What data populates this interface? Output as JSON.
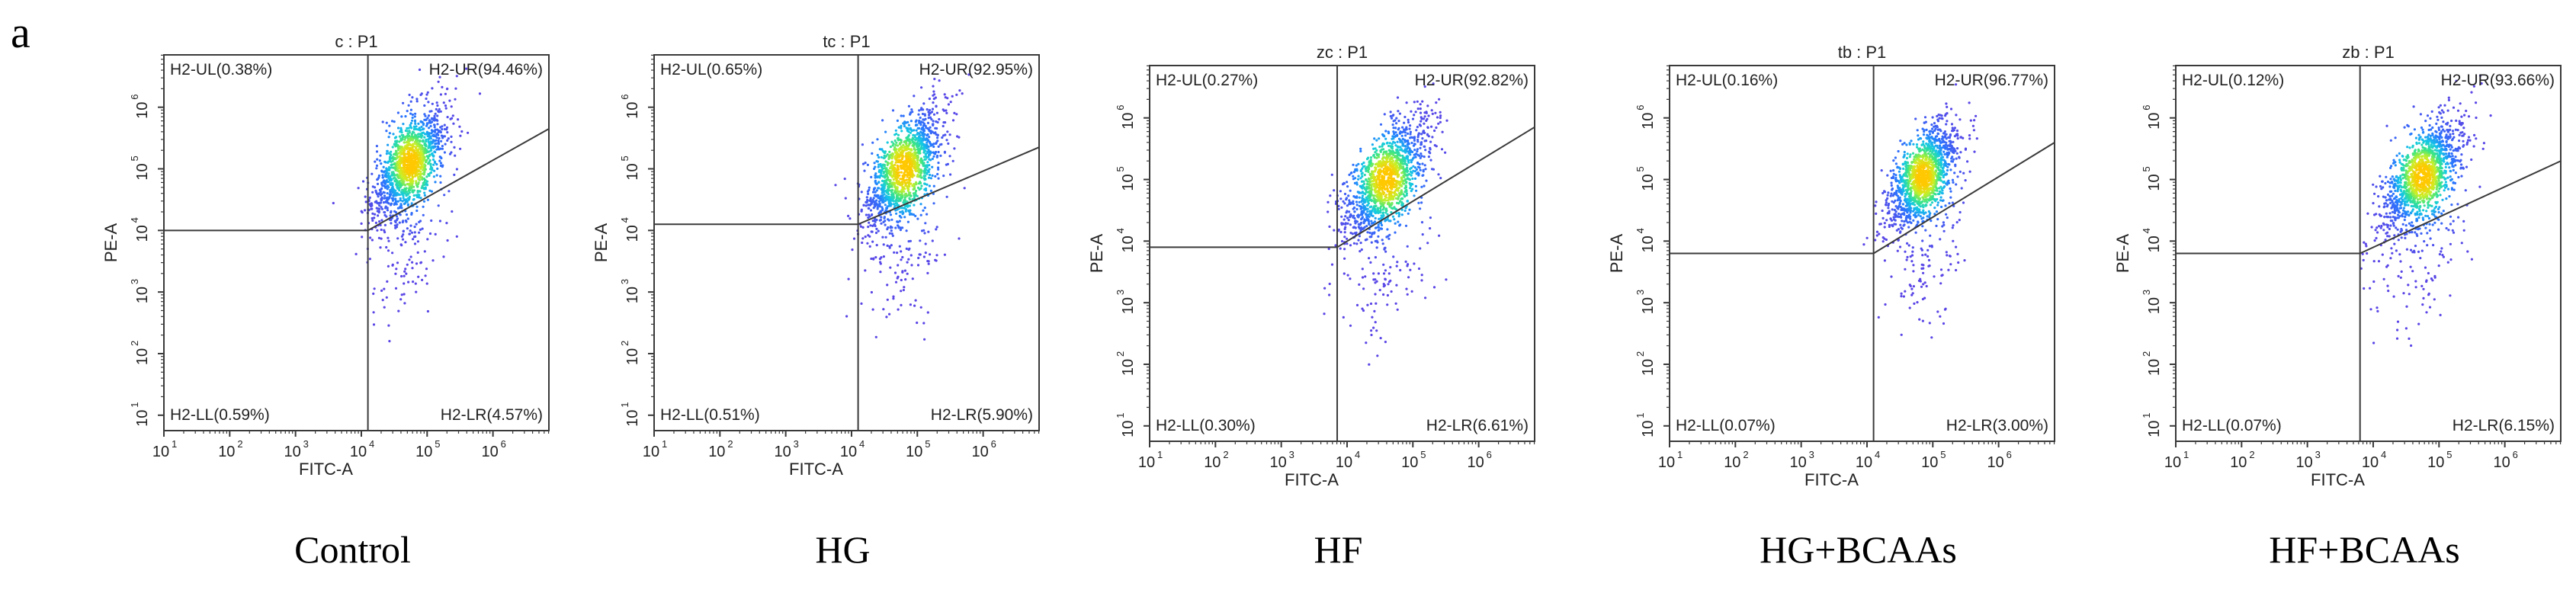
{
  "panel_label": "a",
  "colors": {
    "frame": "#3a3a3a",
    "text": "#222222",
    "caption": "#000000"
  },
  "chart_data": [
    {
      "type": "scatter",
      "title": "c : P1",
      "caption": "Control",
      "xlabel": "FITC-A",
      "ylabel": "PE-A",
      "scale": "log",
      "xlim_exp": [
        1,
        6.85
      ],
      "ylim_exp": [
        0.75,
        6.85
      ],
      "ticks": [
        {
          "base": "10",
          "exp": "1",
          "v": 1
        },
        {
          "base": "10",
          "exp": "2",
          "v": 2
        },
        {
          "base": "10",
          "exp": "3",
          "v": 3
        },
        {
          "base": "10",
          "exp": "4",
          "v": 4
        },
        {
          "base": "10",
          "exp": "5",
          "v": 5
        },
        {
          "base": "10",
          "exp": "6",
          "v": 6
        }
      ],
      "quadrants": {
        "ul": "H2-UL(0.38%)",
        "ur": "H2-UR(94.46%)",
        "ll": "H2-LL(0.59%)",
        "lr": "H2-LR(4.57%)"
      },
      "gate": {
        "vertical_x": 4.1,
        "horizontal_y": 4.0,
        "diagonal_end": [
          6.85,
          5.65
        ]
      },
      "cluster": {
        "cx": 4.75,
        "cy": 5.1,
        "sx": 0.28,
        "sy": 0.48,
        "tilt": 0.9
      }
    },
    {
      "type": "scatter",
      "title": "tc : P1",
      "caption": "HG",
      "xlabel": "FITC-A",
      "ylabel": "PE-A",
      "scale": "log",
      "xlim_exp": [
        1,
        6.85
      ],
      "ylim_exp": [
        0.75,
        6.85
      ],
      "ticks": [
        {
          "base": "10",
          "exp": "1",
          "v": 1
        },
        {
          "base": "10",
          "exp": "2",
          "v": 2
        },
        {
          "base": "10",
          "exp": "3",
          "v": 3
        },
        {
          "base": "10",
          "exp": "4",
          "v": 4
        },
        {
          "base": "10",
          "exp": "5",
          "v": 5
        },
        {
          "base": "10",
          "exp": "6",
          "v": 6
        }
      ],
      "quadrants": {
        "ul": "H2-UL(0.65%)",
        "ur": "H2-UR(92.95%)",
        "ll": "H2-LL(0.51%)",
        "lr": "H2-LR(5.90%)"
      },
      "gate": {
        "vertical_x": 4.1,
        "horizontal_y": 4.1,
        "diagonal_end": [
          6.85,
          5.35
        ]
      },
      "cluster": {
        "cx": 4.8,
        "cy": 5.0,
        "sx": 0.3,
        "sy": 0.52,
        "tilt": 0.9
      }
    },
    {
      "type": "scatter",
      "title": "zc : P1",
      "caption": "HF",
      "xlabel": "FITC-A",
      "ylabel": "PE-A",
      "scale": "log",
      "xlim_exp": [
        1,
        6.85
      ],
      "ylim_exp": [
        0.75,
        6.85
      ],
      "ticks": [
        {
          "base": "10",
          "exp": "1",
          "v": 1
        },
        {
          "base": "10",
          "exp": "2",
          "v": 2
        },
        {
          "base": "10",
          "exp": "3",
          "v": 3
        },
        {
          "base": "10",
          "exp": "4",
          "v": 4
        },
        {
          "base": "10",
          "exp": "5",
          "v": 5
        },
        {
          "base": "10",
          "exp": "6",
          "v": 6
        }
      ],
      "quadrants": {
        "ul": "H2-UL(0.27%)",
        "ur": "H2-UR(92.82%)",
        "ll": "H2-LL(0.30%)",
        "lr": "H2-LR(6.61%)"
      },
      "gate": {
        "vertical_x": 3.85,
        "horizontal_y": 3.9,
        "diagonal_end": [
          6.85,
          5.85
        ]
      },
      "cluster": {
        "cx": 4.6,
        "cy": 5.0,
        "sx": 0.32,
        "sy": 0.5,
        "tilt": 0.9
      }
    },
    {
      "type": "scatter",
      "title": "tb : P1",
      "caption": "HG+BCAAs",
      "xlabel": "FITC-A",
      "ylabel": "PE-A",
      "scale": "log",
      "xlim_exp": [
        1,
        6.85
      ],
      "ylim_exp": [
        0.75,
        6.85
      ],
      "ticks": [
        {
          "base": "10",
          "exp": "1",
          "v": 1
        },
        {
          "base": "10",
          "exp": "2",
          "v": 2
        },
        {
          "base": "10",
          "exp": "3",
          "v": 3
        },
        {
          "base": "10",
          "exp": "4",
          "v": 4
        },
        {
          "base": "10",
          "exp": "5",
          "v": 5
        },
        {
          "base": "10",
          "exp": "6",
          "v": 6
        }
      ],
      "quadrants": {
        "ul": "H2-UL(0.16%)",
        "ur": "H2-UR(96.77%)",
        "ll": "H2-LL(0.07%)",
        "lr": "H2-LR(3.00%)"
      },
      "gate": {
        "vertical_x": 4.1,
        "horizontal_y": 3.8,
        "diagonal_end": [
          6.85,
          5.6
        ]
      },
      "cluster": {
        "cx": 4.85,
        "cy": 5.05,
        "sx": 0.26,
        "sy": 0.45,
        "tilt": 0.9
      }
    },
    {
      "type": "scatter",
      "title": "zb : P1",
      "caption": "HF+BCAAs",
      "xlabel": "FITC-A",
      "ylabel": "PE-A",
      "scale": "log",
      "xlim_exp": [
        1,
        6.85
      ],
      "ylim_exp": [
        0.75,
        6.85
      ],
      "ticks": [
        {
          "base": "10",
          "exp": "1",
          "v": 1
        },
        {
          "base": "10",
          "exp": "2",
          "v": 2
        },
        {
          "base": "10",
          "exp": "3",
          "v": 3
        },
        {
          "base": "10",
          "exp": "4",
          "v": 4
        },
        {
          "base": "10",
          "exp": "5",
          "v": 5
        },
        {
          "base": "10",
          "exp": "6",
          "v": 6
        }
      ],
      "quadrants": {
        "ul": "H2-UL(0.12%)",
        "ur": "H2-UR(93.66%)",
        "ll": "H2-LL(0.07%)",
        "lr": "H2-LR(6.15%)"
      },
      "gate": {
        "vertical_x": 3.8,
        "horizontal_y": 3.8,
        "diagonal_end": [
          6.85,
          5.3
        ]
      },
      "cluster": {
        "cx": 4.75,
        "cy": 5.05,
        "sx": 0.3,
        "sy": 0.48,
        "tilt": 0.9
      }
    }
  ]
}
